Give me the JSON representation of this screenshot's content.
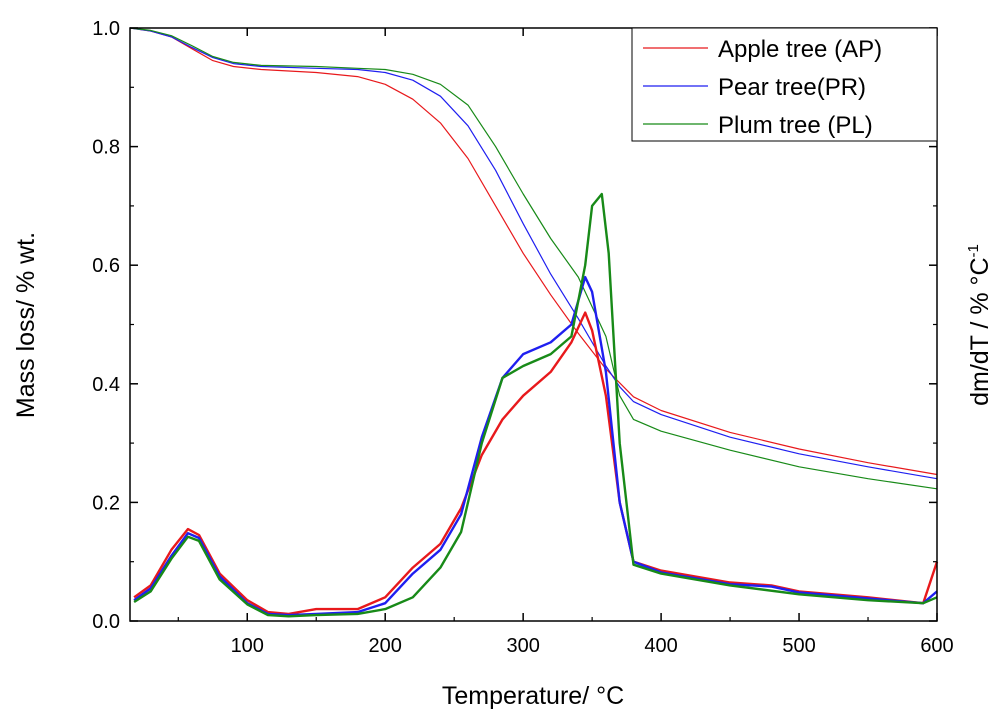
{
  "chart_data": {
    "type": "line",
    "xlabel": "Temperature/ °C",
    "ylabel_left": "Mass loss/ % wt.",
    "ylabel_right_main": "dm/dT / % °C",
    "ylabel_right_sup": "-1",
    "xlim": [
      15,
      600
    ],
    "ylim": [
      0.0,
      1.0
    ],
    "x_ticks": [
      100,
      200,
      300,
      400,
      500,
      600
    ],
    "y_ticks": [
      0.0,
      0.2,
      0.4,
      0.6,
      0.8,
      1.0
    ],
    "x_tick_labels": [
      "100",
      "200",
      "300",
      "400",
      "500",
      "600"
    ],
    "y_tick_labels": [
      "0.0",
      "0.2",
      "0.4",
      "0.6",
      "0.8",
      "1.0"
    ],
    "grid": false,
    "legend_position": "top-right",
    "legend": [
      {
        "label": "Apple tree (AP)",
        "color": "#e8191c"
      },
      {
        "label": "Pear tree(PR)",
        "color": "#1f1ff0"
      },
      {
        "label": "Plum tree (PL)",
        "color": "#188a18"
      }
    ],
    "series": [
      {
        "name": "Apple tree (AP)",
        "kind": "mass",
        "color": "#e8191c",
        "points": [
          [
            15,
            1.0
          ],
          [
            30,
            0.995
          ],
          [
            45,
            0.985
          ],
          [
            60,
            0.965
          ],
          [
            75,
            0.945
          ],
          [
            90,
            0.935
          ],
          [
            110,
            0.93
          ],
          [
            150,
            0.925
          ],
          [
            180,
            0.918
          ],
          [
            200,
            0.905
          ],
          [
            220,
            0.88
          ],
          [
            240,
            0.84
          ],
          [
            260,
            0.78
          ],
          [
            280,
            0.7
          ],
          [
            300,
            0.62
          ],
          [
            320,
            0.55
          ],
          [
            340,
            0.485
          ],
          [
            360,
            0.425
          ],
          [
            380,
            0.378
          ],
          [
            400,
            0.355
          ],
          [
            450,
            0.318
          ],
          [
            500,
            0.29
          ],
          [
            550,
            0.267
          ],
          [
            600,
            0.247
          ]
        ]
      },
      {
        "name": "Pear tree(PR)",
        "kind": "mass",
        "color": "#1f1ff0",
        "points": [
          [
            15,
            1.0
          ],
          [
            30,
            0.995
          ],
          [
            45,
            0.985
          ],
          [
            60,
            0.967
          ],
          [
            75,
            0.95
          ],
          [
            90,
            0.94
          ],
          [
            110,
            0.935
          ],
          [
            150,
            0.932
          ],
          [
            180,
            0.93
          ],
          [
            200,
            0.925
          ],
          [
            220,
            0.912
          ],
          [
            240,
            0.885
          ],
          [
            260,
            0.835
          ],
          [
            280,
            0.76
          ],
          [
            300,
            0.67
          ],
          [
            320,
            0.585
          ],
          [
            340,
            0.51
          ],
          [
            360,
            0.43
          ],
          [
            370,
            0.395
          ],
          [
            380,
            0.37
          ],
          [
            400,
            0.348
          ],
          [
            450,
            0.31
          ],
          [
            500,
            0.282
          ],
          [
            550,
            0.26
          ],
          [
            600,
            0.24
          ]
        ]
      },
      {
        "name": "Plum tree (PL)",
        "kind": "mass",
        "color": "#188a18",
        "points": [
          [
            15,
            1.0
          ],
          [
            30,
            0.996
          ],
          [
            45,
            0.987
          ],
          [
            60,
            0.97
          ],
          [
            75,
            0.952
          ],
          [
            90,
            0.942
          ],
          [
            110,
            0.937
          ],
          [
            150,
            0.935
          ],
          [
            180,
            0.932
          ],
          [
            200,
            0.93
          ],
          [
            220,
            0.922
          ],
          [
            240,
            0.905
          ],
          [
            260,
            0.87
          ],
          [
            280,
            0.8
          ],
          [
            300,
            0.72
          ],
          [
            320,
            0.645
          ],
          [
            340,
            0.58
          ],
          [
            360,
            0.48
          ],
          [
            370,
            0.38
          ],
          [
            380,
            0.34
          ],
          [
            400,
            0.32
          ],
          [
            450,
            0.288
          ],
          [
            500,
            0.26
          ],
          [
            550,
            0.24
          ],
          [
            600,
            0.223
          ]
        ]
      },
      {
        "name": "Apple tree (AP)",
        "kind": "derivative",
        "color": "#e8191c",
        "points": [
          [
            18,
            0.04
          ],
          [
            30,
            0.06
          ],
          [
            45,
            0.12
          ],
          [
            57,
            0.155
          ],
          [
            65,
            0.145
          ],
          [
            80,
            0.08
          ],
          [
            100,
            0.035
          ],
          [
            115,
            0.015
          ],
          [
            130,
            0.012
          ],
          [
            150,
            0.02
          ],
          [
            180,
            0.02
          ],
          [
            200,
            0.04
          ],
          [
            220,
            0.09
          ],
          [
            240,
            0.13
          ],
          [
            255,
            0.19
          ],
          [
            270,
            0.28
          ],
          [
            285,
            0.34
          ],
          [
            300,
            0.38
          ],
          [
            320,
            0.42
          ],
          [
            335,
            0.47
          ],
          [
            345,
            0.52
          ],
          [
            350,
            0.49
          ],
          [
            360,
            0.38
          ],
          [
            370,
            0.2
          ],
          [
            380,
            0.1
          ],
          [
            400,
            0.085
          ],
          [
            450,
            0.065
          ],
          [
            480,
            0.06
          ],
          [
            500,
            0.05
          ],
          [
            550,
            0.04
          ],
          [
            590,
            0.03
          ],
          [
            600,
            0.1
          ]
        ]
      },
      {
        "name": "Pear tree(PR)",
        "kind": "derivative",
        "color": "#1f1ff0",
        "points": [
          [
            18,
            0.035
          ],
          [
            30,
            0.055
          ],
          [
            45,
            0.11
          ],
          [
            57,
            0.148
          ],
          [
            65,
            0.14
          ],
          [
            80,
            0.075
          ],
          [
            100,
            0.03
          ],
          [
            115,
            0.012
          ],
          [
            130,
            0.01
          ],
          [
            150,
            0.012
          ],
          [
            180,
            0.015
          ],
          [
            200,
            0.03
          ],
          [
            220,
            0.08
          ],
          [
            240,
            0.12
          ],
          [
            255,
            0.18
          ],
          [
            270,
            0.31
          ],
          [
            285,
            0.41
          ],
          [
            300,
            0.45
          ],
          [
            320,
            0.47
          ],
          [
            335,
            0.5
          ],
          [
            345,
            0.58
          ],
          [
            350,
            0.555
          ],
          [
            360,
            0.42
          ],
          [
            370,
            0.2
          ],
          [
            380,
            0.1
          ],
          [
            400,
            0.082
          ],
          [
            450,
            0.062
          ],
          [
            480,
            0.058
          ],
          [
            500,
            0.048
          ],
          [
            550,
            0.038
          ],
          [
            590,
            0.03
          ],
          [
            600,
            0.05
          ]
        ]
      },
      {
        "name": "Plum tree (PL)",
        "kind": "derivative",
        "color": "#188a18",
        "points": [
          [
            18,
            0.032
          ],
          [
            30,
            0.05
          ],
          [
            45,
            0.105
          ],
          [
            57,
            0.142
          ],
          [
            65,
            0.135
          ],
          [
            80,
            0.07
          ],
          [
            100,
            0.028
          ],
          [
            115,
            0.01
          ],
          [
            130,
            0.008
          ],
          [
            150,
            0.01
          ],
          [
            180,
            0.012
          ],
          [
            200,
            0.02
          ],
          [
            220,
            0.04
          ],
          [
            240,
            0.09
          ],
          [
            255,
            0.15
          ],
          [
            270,
            0.3
          ],
          [
            285,
            0.41
          ],
          [
            300,
            0.43
          ],
          [
            320,
            0.45
          ],
          [
            335,
            0.48
          ],
          [
            345,
            0.6
          ],
          [
            350,
            0.7
          ],
          [
            357,
            0.72
          ],
          [
            362,
            0.62
          ],
          [
            370,
            0.3
          ],
          [
            380,
            0.095
          ],
          [
            400,
            0.08
          ],
          [
            450,
            0.06
          ],
          [
            500,
            0.045
          ],
          [
            550,
            0.035
          ],
          [
            590,
            0.03
          ],
          [
            600,
            0.04
          ]
        ]
      }
    ]
  }
}
